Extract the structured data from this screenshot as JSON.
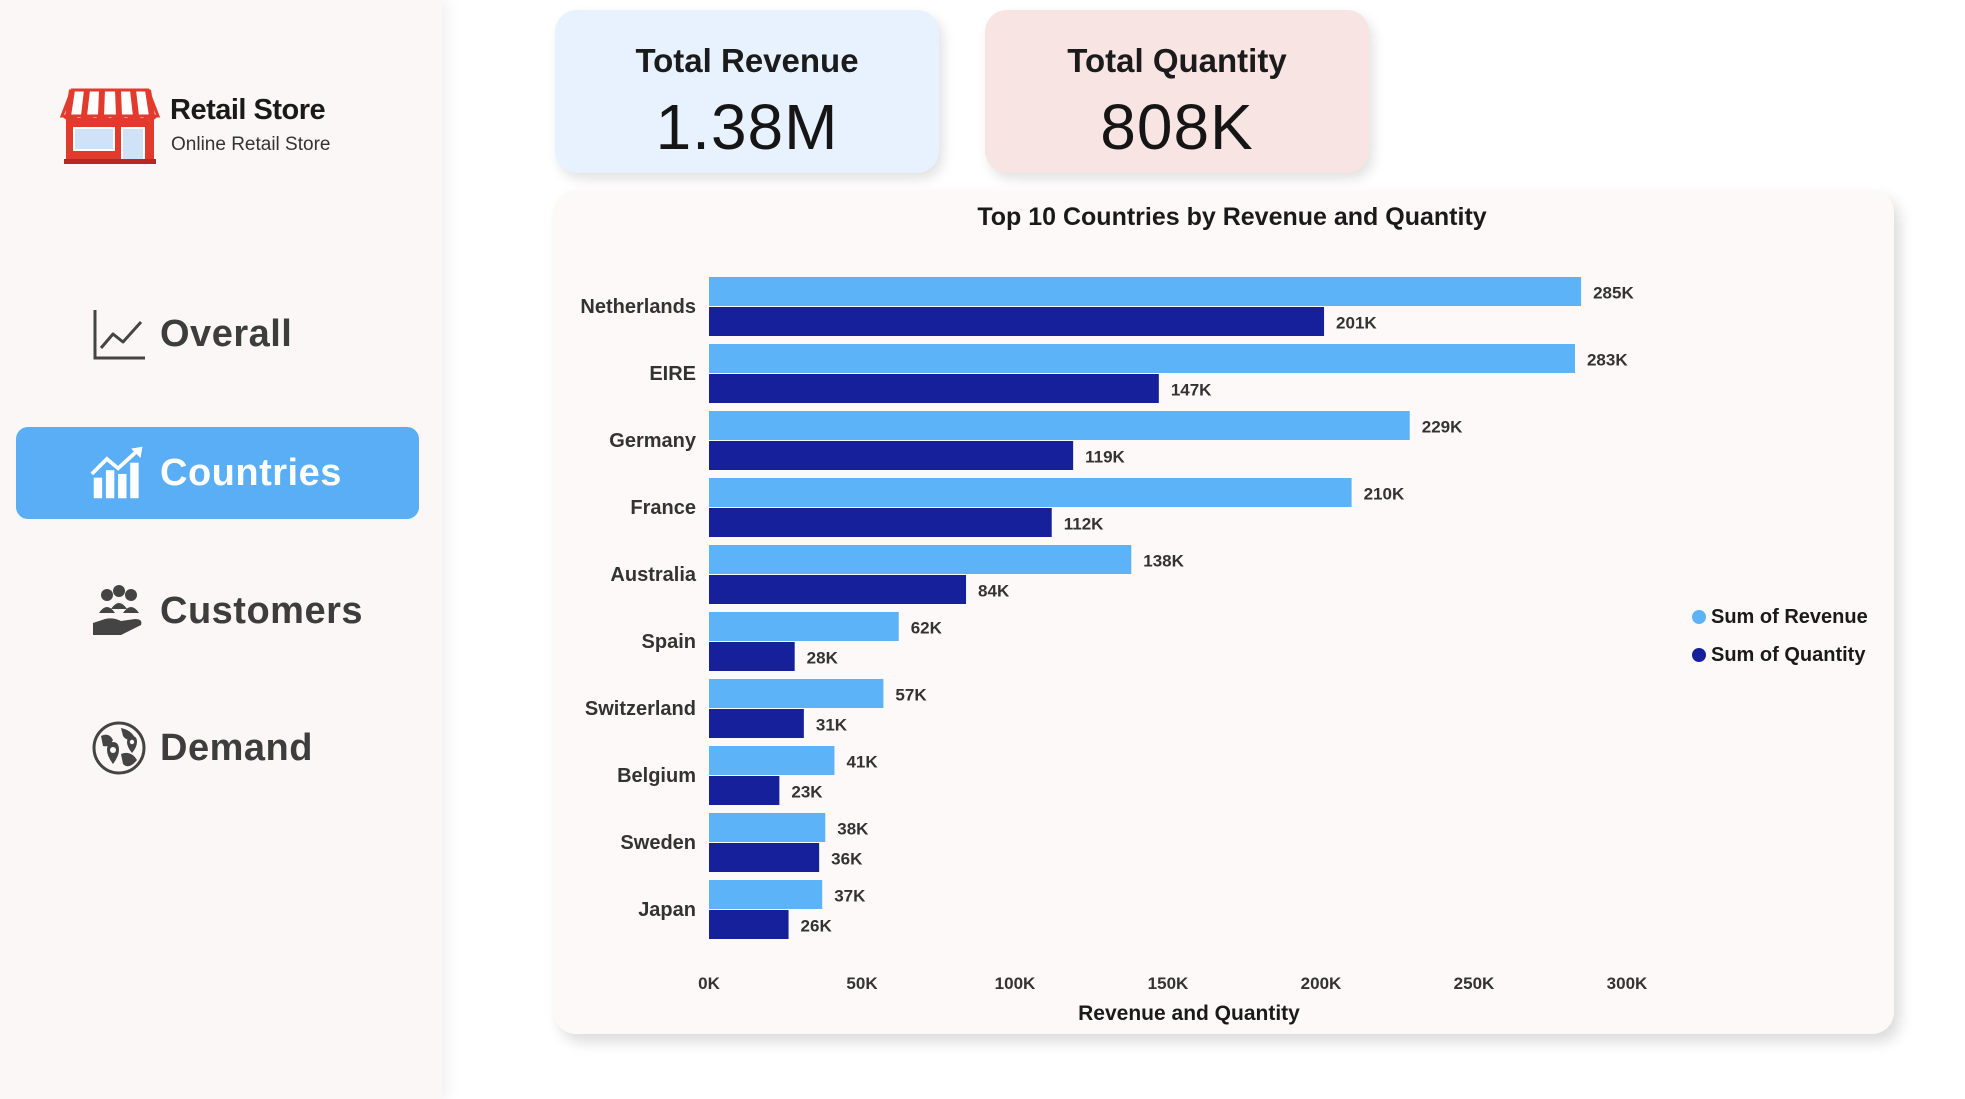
{
  "sidebar": {
    "logo": {
      "title": "Retail Store",
      "subtitle": "Online Retail Store",
      "icon": "storefront-icon"
    },
    "nav": [
      {
        "label": "Overall",
        "icon": "line-chart-icon",
        "active": false
      },
      {
        "label": "Countries",
        "icon": "growth-bar-chart-icon",
        "active": true
      },
      {
        "label": "Customers",
        "icon": "customers-hand-icon",
        "active": false
      },
      {
        "label": "Demand",
        "icon": "globe-pin-icon",
        "active": false
      }
    ]
  },
  "kpis": [
    {
      "title": "Total Revenue",
      "value": "1.38M",
      "bg": "#e7f2fe"
    },
    {
      "title": "Total Quantity",
      "value": "808K",
      "bg": "#f9e4e4"
    }
  ],
  "colors": {
    "revenue": "#5cb3f7",
    "quantity": "#16209a",
    "accent": "#5aaef5"
  },
  "chart_data": {
    "type": "bar",
    "orientation": "horizontal",
    "title": "Top 10 Countries by Revenue and Quantity",
    "xlabel": "Revenue and Quantity",
    "ylabel": "",
    "categories": [
      "Netherlands",
      "EIRE",
      "Germany",
      "France",
      "Australia",
      "Spain",
      "Switzerland",
      "Belgium",
      "Sweden",
      "Japan"
    ],
    "series": [
      {
        "name": "Sum of Revenue",
        "values": [
          285000,
          283000,
          229000,
          210000,
          138000,
          62000,
          57000,
          41000,
          38000,
          37000
        ],
        "labels": [
          "285K",
          "283K",
          "229K",
          "210K",
          "138K",
          "62K",
          "57K",
          "41K",
          "38K",
          "37K"
        ]
      },
      {
        "name": "Sum of Quantity",
        "values": [
          201000,
          147000,
          119000,
          112000,
          84000,
          28000,
          31000,
          23000,
          36000,
          26000
        ],
        "labels": [
          "201K",
          "147K",
          "119K",
          "112K",
          "84K",
          "28K",
          "31K",
          "23K",
          "36K",
          "26K"
        ]
      }
    ],
    "xlim": [
      0,
      300000
    ],
    "xticks": [
      0,
      50000,
      100000,
      150000,
      200000,
      250000,
      300000
    ],
    "xtick_labels": [
      "0K",
      "50K",
      "100K",
      "150K",
      "200K",
      "250K",
      "300K"
    ],
    "grid": false,
    "legend": "right"
  }
}
